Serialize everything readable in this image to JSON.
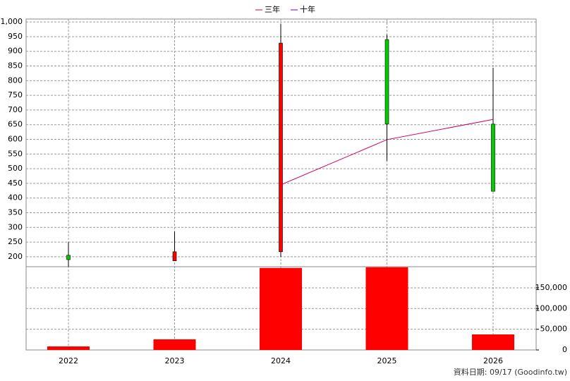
{
  "chart_data": {
    "type": "candlestick",
    "categories": [
      "2022",
      "2023",
      "2024",
      "2025",
      "2026"
    ],
    "candles": {
      "color_up": "#ff0000",
      "color_down": "#00cc00",
      "open": [
        205,
        186,
        217,
        940,
        652
      ],
      "high": [
        250,
        286,
        993,
        957,
        844
      ],
      "low": [
        166,
        186,
        200,
        527,
        423
      ],
      "close": [
        190,
        217,
        928,
        652,
        423
      ]
    },
    "series": [
      {
        "name": "三年",
        "color": "#cc0066",
        "values": [
          null,
          null,
          445,
          599,
          668
        ]
      },
      {
        "name": "十年",
        "color": "#6600cc",
        "values": [
          null,
          null,
          null,
          null,
          null
        ]
      }
    ],
    "volume": {
      "color": "#ff0000",
      "axis": "y2",
      "values": [
        8500,
        25600,
        198000,
        199700,
        37500
      ]
    },
    "ylim": [
      166,
      1010
    ],
    "yticks": [
      200,
      250,
      300,
      350,
      400,
      450,
      500,
      550,
      600,
      650,
      700,
      750,
      800,
      850,
      900,
      950,
      {
        "value": 1000,
        "label": "1,000"
      }
    ],
    "y2lim": [
      0,
      201000
    ],
    "y2ticks": [
      0,
      {
        "value": 50000,
        "label": "50,000"
      },
      {
        "value": 100000,
        "label": "100,000"
      },
      {
        "value": 150000,
        "label": "150,000"
      }
    ],
    "grid": true,
    "legend": "top"
  },
  "footer": "資料日期: 09/17  (Goodinfo.tw)"
}
